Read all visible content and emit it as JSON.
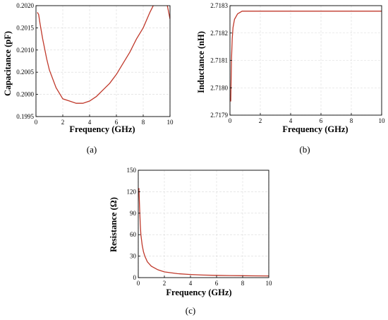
{
  "chart_data": [
    {
      "panel": "(a)",
      "type": "line",
      "xlabel": "Frequency (GHz)",
      "ylabel": "Capacitance (pF)",
      "xlim": [
        0,
        10
      ],
      "ylim": [
        0.1995,
        0.202
      ],
      "xticks": [
        "0",
        "2",
        "4",
        "6",
        "8",
        "10"
      ],
      "yticks": [
        "0.1995",
        "0.2000",
        "0.2005",
        "0.2010",
        "0.2015",
        "0.2020"
      ],
      "grid": true,
      "series": [
        {
          "color": "#c0392b",
          "x": [
            0.1,
            0.2,
            0.3,
            0.5,
            0.8,
            1.0,
            1.5,
            2.0,
            2.5,
            3.0,
            3.5,
            4.0,
            4.5,
            5.0,
            5.5,
            6.0,
            6.5,
            7.0,
            7.5,
            8.0,
            8.5,
            9.0,
            9.5,
            10.0
          ],
          "y": [
            0.20185,
            0.2018,
            0.2016,
            0.20125,
            0.2008,
            0.20055,
            0.20015,
            0.1999,
            0.19985,
            0.1998,
            0.1998,
            0.19985,
            0.19995,
            0.2001,
            0.20025,
            0.20045,
            0.2007,
            0.20095,
            0.20125,
            0.2015,
            0.20185,
            0.20215,
            0.20245,
            0.2017
          ]
        }
      ]
    },
    {
      "panel": "(b)",
      "type": "line",
      "xlabel": "Frequency (GHz)",
      "ylabel": "Inductance (nH)",
      "xlim": [
        0,
        10
      ],
      "ylim": [
        2.7179,
        2.7183
      ],
      "xticks": [
        "0",
        "2",
        "4",
        "6",
        "8",
        "10"
      ],
      "yticks": [
        "2.7179",
        "2.7180",
        "2.7181",
        "2.7182",
        "2.7183"
      ],
      "grid": true,
      "series": [
        {
          "color": "#c0392b",
          "x": [
            0.05,
            0.1,
            0.15,
            0.2,
            0.3,
            0.5,
            0.8,
            1.0,
            1.5,
            2.0,
            4.0,
            6.0,
            8.0,
            10.0
          ],
          "y": [
            2.71795,
            2.7181,
            2.71818,
            2.71822,
            2.71825,
            2.71827,
            2.71828,
            2.71828,
            2.71828,
            2.71828,
            2.71828,
            2.71828,
            2.71828,
            2.71828
          ]
        }
      ]
    },
    {
      "panel": "(c)",
      "type": "line",
      "xlabel": "Frequency (GHz)",
      "ylabel": "Resistance (Ω)",
      "xlim": [
        0,
        10
      ],
      "ylim": [
        0,
        150
      ],
      "xticks": [
        "0",
        "2",
        "4",
        "6",
        "8",
        "10"
      ],
      "yticks": [
        "0",
        "30",
        "60",
        "90",
        "120",
        "150"
      ],
      "grid": true,
      "series": [
        {
          "color": "#c0392b",
          "x": [
            0.05,
            0.1,
            0.15,
            0.2,
            0.3,
            0.4,
            0.5,
            0.7,
            1.0,
            1.5,
            2.0,
            3.0,
            4.0,
            5.0,
            6.0,
            7.0,
            8.0,
            9.0,
            10.0
          ],
          "y": [
            125,
            100,
            75,
            60,
            45,
            36,
            30,
            22,
            16,
            11,
            8,
            5.5,
            4.3,
            3.6,
            3.2,
            2.9,
            2.7,
            2.5,
            2.4
          ]
        }
      ]
    }
  ]
}
